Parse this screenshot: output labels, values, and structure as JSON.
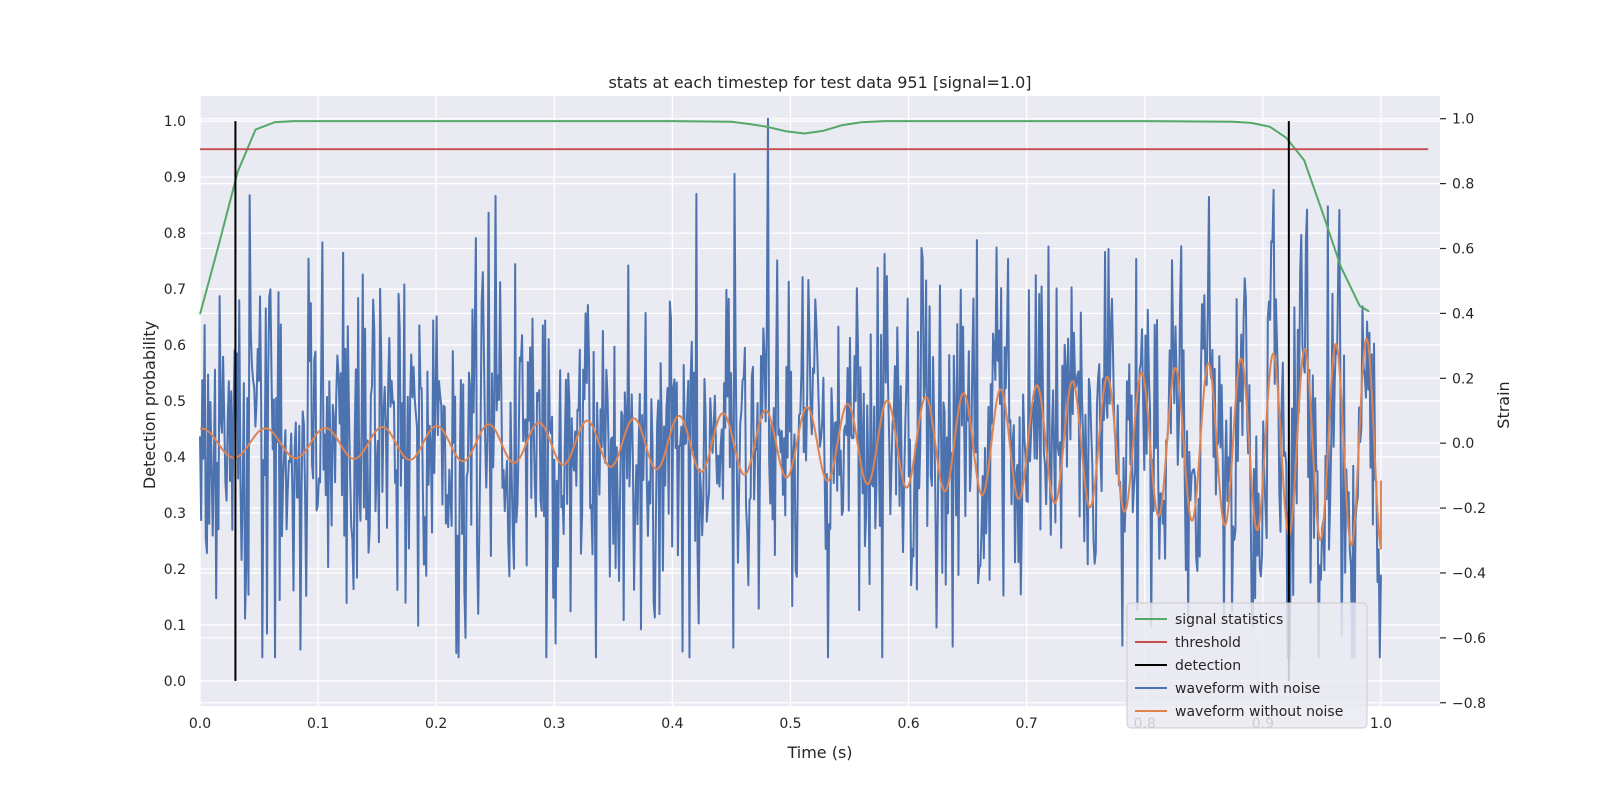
{
  "chart_data": {
    "type": "line",
    "title": "stats at each timestep for test data 951 [signal=1.0]",
    "xlabel": "Time (s)",
    "ylabel_left": "Detection probability",
    "ylabel_right": "Strain",
    "xlim": [
      0.0,
      1.05
    ],
    "ylim_left": [
      -0.045,
      1.045
    ],
    "ylim_right": [
      -0.81,
      1.07
    ],
    "x_ticks": [
      "0.0",
      "0.1",
      "0.2",
      "0.3",
      "0.4",
      "0.5",
      "0.6",
      "0.7",
      "0.8",
      "0.9",
      "1.0"
    ],
    "y_ticks_left": [
      "0.0",
      "0.1",
      "0.2",
      "0.3",
      "0.4",
      "0.5",
      "0.6",
      "0.7",
      "0.8",
      "0.9",
      "1.0"
    ],
    "y_ticks_right": [
      "−0.8",
      "−0.6",
      "−0.4",
      "−0.2",
      "0.0",
      "0.2",
      "0.4",
      "0.6",
      "0.8",
      "1.0"
    ],
    "grid": true,
    "legend_position": "lower-right",
    "colors": {
      "signal_statistics": "#55a868",
      "threshold": "#c44e52",
      "detection": "#000000",
      "waveform_with_noise": "#4c72b0",
      "waveform_without_noise": "#dd8452",
      "plot_background": "#eaeaf2",
      "grid": "#ffffff"
    },
    "series": [
      {
        "name": "signal statistics",
        "axis": "left",
        "x": [
          0.0,
          0.016,
          0.032,
          0.047,
          0.063,
          0.079,
          0.1,
          0.2,
          0.3,
          0.4,
          0.45,
          0.465,
          0.48,
          0.496,
          0.512,
          0.528,
          0.544,
          0.56,
          0.58,
          0.6,
          0.7,
          0.8,
          0.875,
          0.89,
          0.906,
          0.92,
          0.935,
          0.95,
          0.966,
          0.982,
          0.99
        ],
        "y": [
          0.655,
          0.78,
          0.91,
          0.985,
          0.998,
          1.0,
          1.0,
          1.0,
          1.0,
          1.0,
          0.999,
          0.995,
          0.99,
          0.982,
          0.978,
          0.983,
          0.993,
          0.998,
          1.0,
          1.0,
          1.0,
          1.0,
          0.999,
          0.997,
          0.99,
          0.97,
          0.93,
          0.84,
          0.74,
          0.67,
          0.66
        ]
      },
      {
        "name": "threshold",
        "axis": "left",
        "x": [
          0.0,
          1.04
        ],
        "y": [
          0.95,
          0.95
        ]
      },
      {
        "name": "waveform with noise",
        "axis": "right",
        "generated_from": {
          "x_start": 0.0,
          "x_end": 1.0,
          "num_samples": 1024,
          "noise_std": 0.26,
          "seed": 951
        },
        "peaks": [
          {
            "x": 0.481,
            "y": 1.0
          },
          {
            "x": 0.453,
            "y": 0.83
          },
          {
            "x": 0.244,
            "y": 0.71
          },
          {
            "x": 0.955,
            "y": 0.73
          }
        ],
        "troughs": [
          {
            "x": 0.578,
            "y": -0.66
          },
          {
            "x": 0.452,
            "y": -0.63
          },
          {
            "x": 0.225,
            "y": -0.6
          }
        ]
      },
      {
        "name": "waveform without noise",
        "axis": "right",
        "model": "chirp",
        "x_start": 0.0,
        "x_end": 1.0,
        "f0_hz": 18.0,
        "f1_hz": 39.0,
        "amplitude_start": 0.045,
        "amplitude_end": 0.33,
        "baseline": 0.0,
        "final_point": {
          "x": 1.0,
          "y": -0.115
        }
      }
    ],
    "detection_lines": [
      {
        "x": 0.03,
        "y_range": [
          0.0,
          1.0
        ]
      },
      {
        "x": 0.922,
        "y_range": [
          0.0,
          1.0
        ]
      }
    ],
    "legend": [
      "signal statistics",
      "threshold",
      "detection",
      "waveform with noise",
      "waveform without noise"
    ]
  }
}
